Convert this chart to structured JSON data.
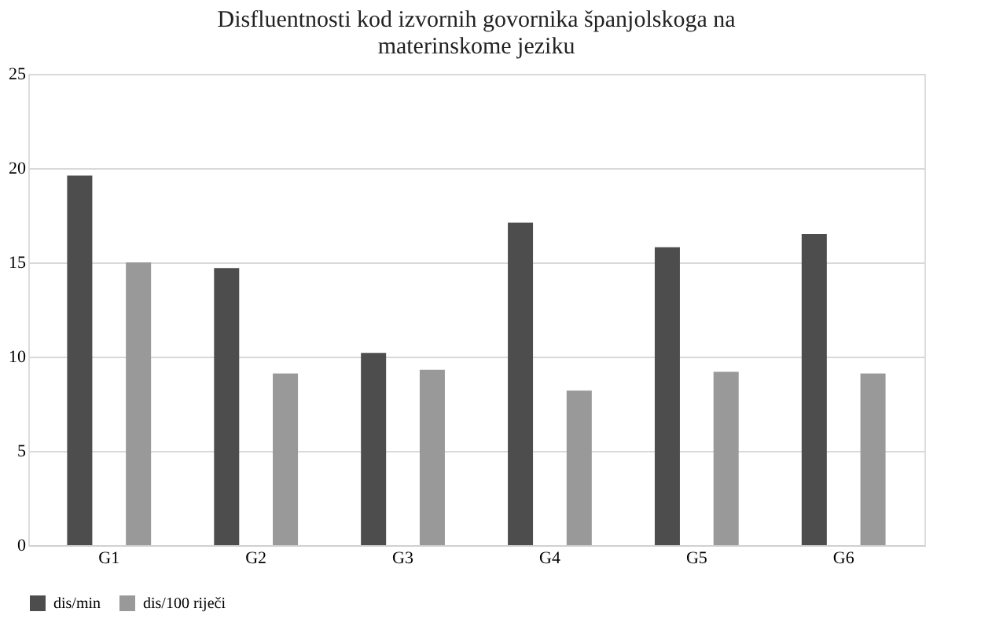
{
  "chart_data": {
    "type": "bar",
    "title": [
      "Disfluentnosti kod izvornih govornika španjolskoga na",
      "materinskome jeziku"
    ],
    "categories": [
      "G1",
      "G2",
      "G3",
      "G4",
      "G5",
      "G6"
    ],
    "series": [
      {
        "name": "dis/min",
        "color": "#4d4d4d",
        "values": [
          19.6,
          14.7,
          10.2,
          17.1,
          15.8,
          16.5
        ]
      },
      {
        "name": "dis/100 riječi",
        "color": "#999999",
        "values": [
          15.0,
          9.1,
          9.3,
          8.2,
          9.2,
          9.1
        ]
      }
    ],
    "ylim": [
      0,
      25
    ],
    "yticks": [
      0,
      5,
      10,
      15,
      20,
      25
    ],
    "grid": "y",
    "legend": "bottom"
  }
}
